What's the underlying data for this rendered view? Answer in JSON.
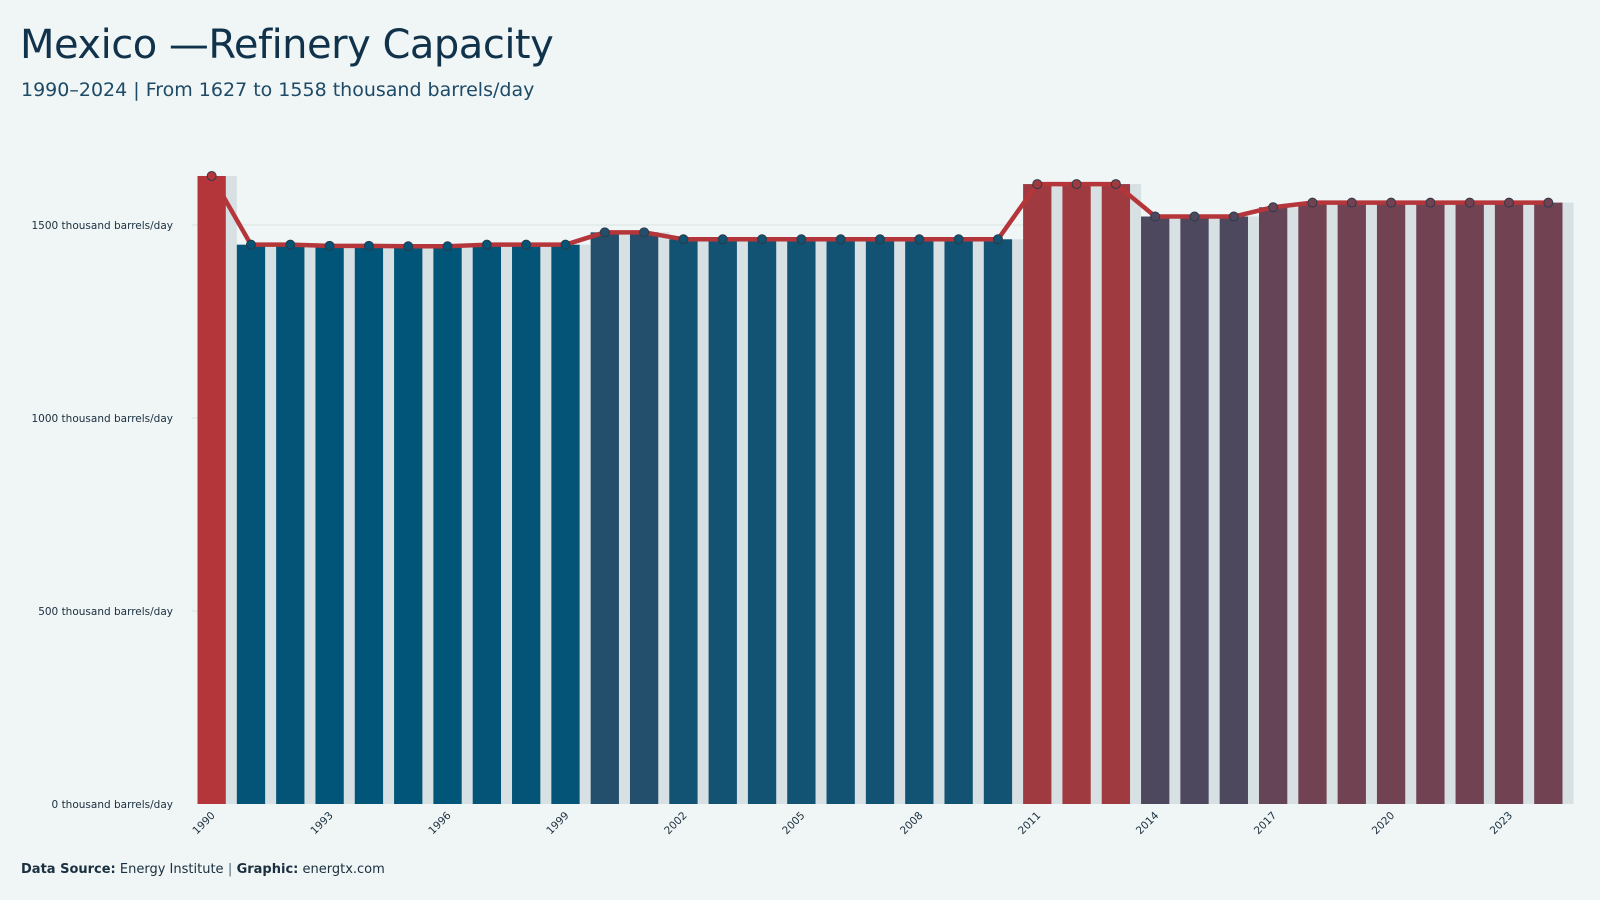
{
  "title": "Mexico —Refinery Capacity",
  "subtitle": "1990–2024 | From 1627 to 1558 thousand barrels/day",
  "footer": {
    "source_label": "Data Source:",
    "source_value": "Energy Institute",
    "separator": "|",
    "graphic_label": "Graphic:",
    "graphic_value": "energtx.com"
  },
  "colors": {
    "background": "#f0f5f5",
    "line": "#b5363a",
    "low": "#005578",
    "high": "#b5363a",
    "gridline": "#d7e2e4",
    "bar_shadow": "#d7e0e2"
  },
  "chart_data": {
    "type": "bar",
    "title": "Mexico —Refinery Capacity",
    "subtitle": "1990–2024 | From 1627 to 1558 thousand barrels/day",
    "xlabel": "",
    "ylabel": "",
    "ylim": [
      0,
      1700
    ],
    "grid": true,
    "y_ticks": [
      0,
      500,
      1000,
      1500
    ],
    "y_tick_labels": [
      "0 thousand barrels/day",
      "500 thousand barrels/day",
      "1000 thousand barrels/day",
      "1500 thousand barrels/day"
    ],
    "x_tick_labels": [
      "1990",
      "1993",
      "1996",
      "1999",
      "2002",
      "2005",
      "2008",
      "2011",
      "2014",
      "2017",
      "2020",
      "2023"
    ],
    "categories": [
      "1990",
      "1991",
      "1992",
      "1993",
      "1994",
      "1995",
      "1996",
      "1997",
      "1998",
      "1999",
      "2000",
      "2001",
      "2002",
      "2003",
      "2004",
      "2005",
      "2006",
      "2007",
      "2008",
      "2009",
      "2010",
      "2011",
      "2012",
      "2013",
      "2014",
      "2015",
      "2016",
      "2017",
      "2018",
      "2019",
      "2020",
      "2021",
      "2022",
      "2023",
      "2024"
    ],
    "values": [
      1627,
      1449,
      1449,
      1446,
      1446,
      1445,
      1445,
      1449,
      1449,
      1449,
      1481,
      1481,
      1463,
      1463,
      1463,
      1463,
      1463,
      1463,
      1463,
      1463,
      1463,
      1606,
      1606,
      1606,
      1522,
      1522,
      1522,
      1546,
      1558,
      1558,
      1558,
      1558,
      1558,
      1558,
      1558
    ],
    "overlay": "line-with-markers"
  }
}
